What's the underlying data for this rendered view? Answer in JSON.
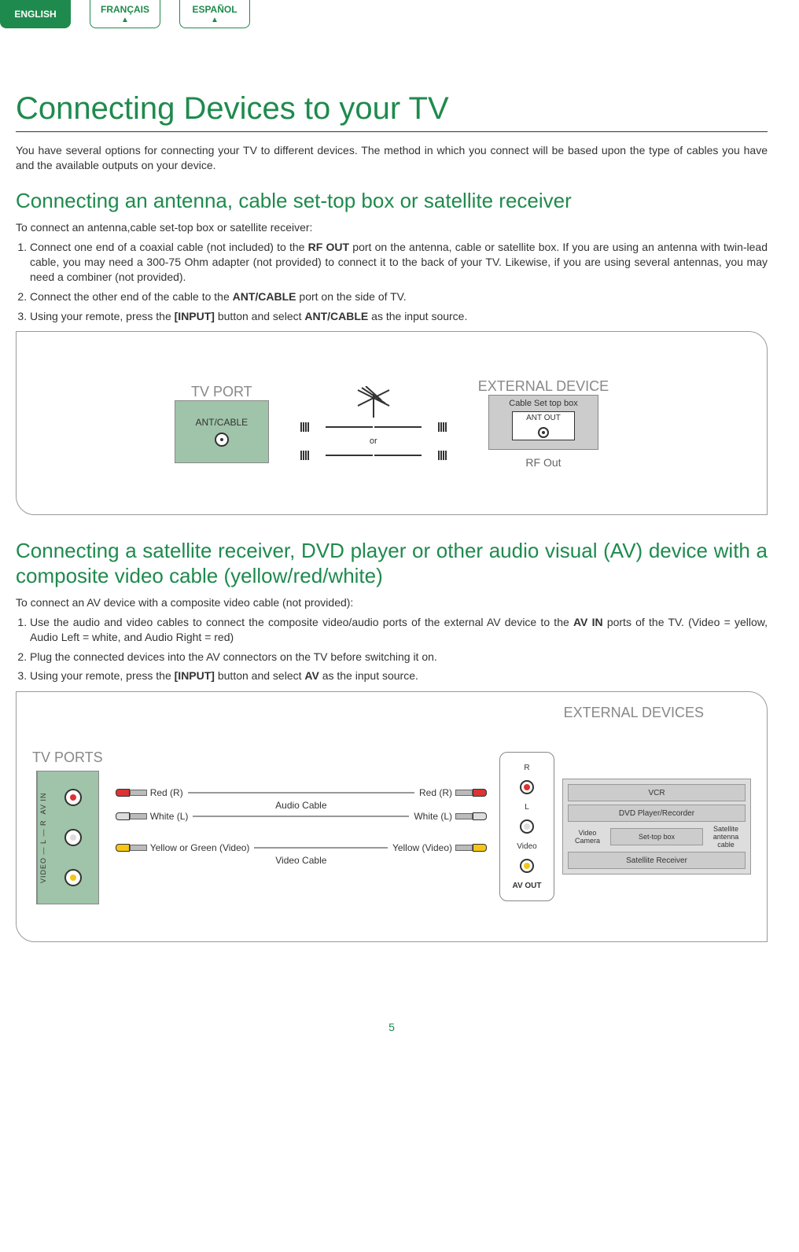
{
  "lang_tabs": {
    "english": "ENGLISH",
    "francais": "FRANÇAIS",
    "espanol": "ESPAÑOL"
  },
  "colors": {
    "accent": "#1f8a4d",
    "port_block": "#9fc4a9",
    "muted": "#888888"
  },
  "page_number": "5",
  "h1": "Connecting Devices to your TV",
  "intro": "You have several options for connecting your TV to different devices. The method in which you connect will be based upon the type of cables you have and the available outputs on your device.",
  "section1": {
    "title": "Connecting an antenna, cable set-top box or satellite receiver",
    "lead": "To connect an antenna,cable set-top box or satellite receiver:",
    "steps": [
      "Connect one end of a coaxial cable (not included) to the <b>RF OUT</b> port on the antenna, cable or satellite box. If you are using an antenna with twin-lead cable, you may need a 300-75 Ohm adapter (not provided) to connect it to the back of your TV. Likewise, if you are using several antennas, you may need a combiner (not provided).",
      "Connect the other end of the cable to the <b>ANT/CABLE</b> port on the side of TV.",
      "Using your remote, press the <b>[INPUT]</b> button and select <b>ANT/CABLE</b> as the input source."
    ],
    "diagram": {
      "tv_port_label": "TV PORT",
      "ant_cable": "ANT/CABLE",
      "or": "or",
      "external_device_label": "EXTERNAL DEVICE",
      "settop_title": "Cable Set top box",
      "ant_out": "ANT OUT",
      "rf_out": "RF Out"
    }
  },
  "section2": {
    "title": "Connecting a satellite receiver, DVD player or other audio visual (AV) device with a composite video cable (yellow/red/white)",
    "lead": "To connect an AV device with a composite video cable (not provided):",
    "steps": [
      "Use the audio and video cables to connect the composite video/audio ports of the external AV device to the <b>AV IN</b> ports of the TV. (Video = yellow, Audio Left = white, and Audio Right = red)",
      "Plug the connected devices into the AV connectors on the TV before switching it on.",
      "Using your remote, press the <b>[INPUT]</b> button and select <b>AV</b> as the input source."
    ],
    "diagram": {
      "tv_ports_label": "TV PORTS",
      "external_devices_label": "EXTERNAL DEVICES",
      "avin_side": "VIDEO — L — R   AV IN",
      "red_r": "Red (R)",
      "white_l": "White (L)",
      "yellow_green_video": "Yellow or Green (Video)",
      "yellow_video": "Yellow (Video)",
      "audio_cable": "Audio Cable",
      "video_cable": "Video Cable",
      "avout": {
        "r": "R",
        "l": "L",
        "video": "Video",
        "label": "AV OUT"
      },
      "devices": {
        "vcr": "VCR",
        "dvd": "DVD Player/Recorder",
        "video_camera": "Video Camera",
        "settop": "Set-top box",
        "sat_cable": "Satellite antenna cable",
        "sat_receiver": "Satellite Receiver"
      },
      "cable_colors": {
        "red": "#d33333",
        "white": "#dddddd",
        "yellow": "#f5c518"
      }
    }
  }
}
